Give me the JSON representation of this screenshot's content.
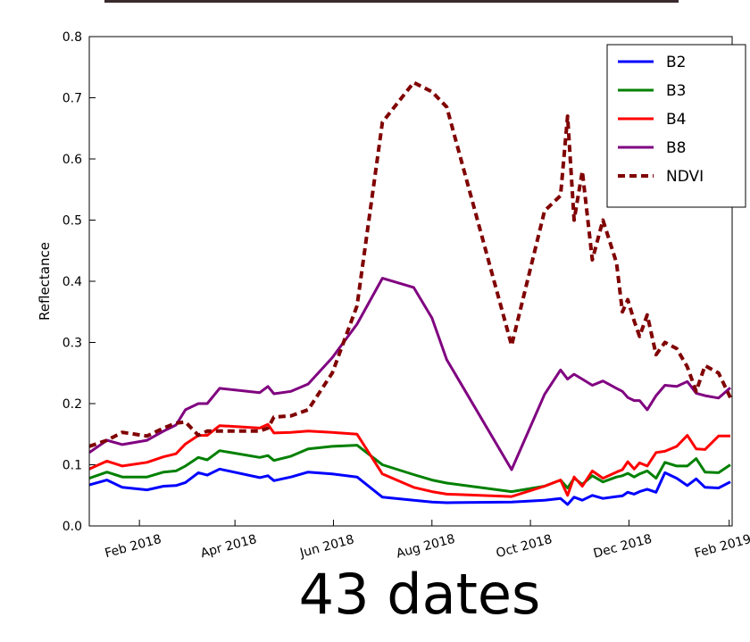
{
  "chart_data": {
    "type": "line",
    "caption": "43 dates",
    "y_label": "Reflectance",
    "x": [
      2018.0,
      2018.03,
      2018.056,
      2018.098,
      2018.126,
      2018.147,
      2018.163,
      2018.185,
      2018.2,
      2018.221,
      2018.289,
      2018.303,
      2018.313,
      2018.342,
      2018.371,
      2018.412,
      2018.454,
      2018.497,
      2018.55,
      2018.581,
      2018.606,
      2018.716,
      2018.772,
      2018.799,
      2018.811,
      2018.822,
      2018.836,
      2018.853,
      2018.871,
      2018.894,
      2018.904,
      2018.913,
      2018.924,
      2018.933,
      2018.946,
      2018.961,
      2018.976,
      2018.996,
      2019.014,
      2019.029,
      2019.044,
      2019.067,
      2019.087
    ],
    "series": [
      {
        "name": "B2",
        "color": "#0000ff",
        "dashed": false,
        "values": [
          0.067,
          0.075,
          0.063,
          0.059,
          0.065,
          0.066,
          0.071,
          0.087,
          0.083,
          0.093,
          0.079,
          0.082,
          0.074,
          0.08,
          0.088,
          0.085,
          0.08,
          0.047,
          0.042,
          0.039,
          0.038,
          0.039,
          0.042,
          0.045,
          0.035,
          0.047,
          0.042,
          0.05,
          0.045,
          0.048,
          0.049,
          0.055,
          0.052,
          0.056,
          0.06,
          0.055,
          0.087,
          0.078,
          0.066,
          0.077,
          0.063,
          0.062,
          0.072
        ]
      },
      {
        "name": "B3",
        "color": "#008000",
        "dashed": false,
        "values": [
          0.078,
          0.088,
          0.08,
          0.08,
          0.088,
          0.09,
          0.098,
          0.112,
          0.108,
          0.123,
          0.112,
          0.115,
          0.107,
          0.114,
          0.126,
          0.13,
          0.132,
          0.1,
          0.084,
          0.075,
          0.07,
          0.056,
          0.065,
          0.075,
          0.062,
          0.078,
          0.068,
          0.082,
          0.072,
          0.08,
          0.082,
          0.086,
          0.08,
          0.085,
          0.09,
          0.078,
          0.104,
          0.098,
          0.098,
          0.11,
          0.088,
          0.087,
          0.1
        ]
      },
      {
        "name": "B4",
        "color": "#ff0000",
        "dashed": false,
        "values": [
          0.093,
          0.106,
          0.098,
          0.104,
          0.113,
          0.118,
          0.134,
          0.148,
          0.148,
          0.164,
          0.16,
          0.166,
          0.152,
          0.153,
          0.155,
          0.153,
          0.15,
          0.085,
          0.063,
          0.056,
          0.052,
          0.048,
          0.065,
          0.075,
          0.05,
          0.08,
          0.065,
          0.09,
          0.078,
          0.088,
          0.092,
          0.105,
          0.093,
          0.103,
          0.098,
          0.12,
          0.122,
          0.13,
          0.148,
          0.126,
          0.125,
          0.147,
          0.147
        ]
      },
      {
        "name": "B8",
        "color": "#800080",
        "dashed": false,
        "values": [
          0.12,
          0.14,
          0.133,
          0.14,
          0.155,
          0.165,
          0.19,
          0.2,
          0.2,
          0.225,
          0.218,
          0.228,
          0.216,
          0.22,
          0.232,
          0.275,
          0.33,
          0.405,
          0.39,
          0.34,
          0.272,
          0.092,
          0.215,
          0.255,
          0.24,
          0.248,
          0.24,
          0.23,
          0.237,
          0.225,
          0.22,
          0.21,
          0.205,
          0.205,
          0.19,
          0.213,
          0.23,
          0.228,
          0.236,
          0.217,
          0.213,
          0.209,
          0.226
        ]
      },
      {
        "name": "NDVI",
        "color": "#800000",
        "dashed": true,
        "values": [
          0.13,
          0.14,
          0.153,
          0.147,
          0.16,
          0.168,
          0.17,
          0.148,
          0.155,
          0.155,
          0.155,
          0.16,
          0.178,
          0.18,
          0.19,
          0.25,
          0.36,
          0.66,
          0.725,
          0.71,
          0.685,
          0.295,
          0.515,
          0.54,
          0.67,
          0.5,
          0.58,
          0.435,
          0.5,
          0.43,
          0.35,
          0.37,
          0.335,
          0.31,
          0.345,
          0.28,
          0.3,
          0.29,
          0.26,
          0.22,
          0.262,
          0.25,
          0.21
        ]
      }
    ],
    "xlim": [
      2018.0,
      2019.09
    ],
    "xticks": [
      {
        "value": 2018.085,
        "label": "Feb 2018"
      },
      {
        "value": 2018.247,
        "label": "Apr 2018"
      },
      {
        "value": 2018.414,
        "label": "Jun 2018"
      },
      {
        "value": 2018.581,
        "label": "Aug 2018"
      },
      {
        "value": 2018.748,
        "label": "Oct 2018"
      },
      {
        "value": 2018.915,
        "label": "Dec 2018"
      },
      {
        "value": 2019.085,
        "label": "Feb 2019"
      }
    ],
    "ylim": [
      0,
      0.8
    ],
    "yticks": [
      {
        "value": 0,
        "label": "0.0"
      },
      0.1,
      0.2,
      0.3,
      0.4,
      0.5,
      0.6,
      0.7,
      0.8
    ],
    "grid": false,
    "legend": "upper right"
  }
}
